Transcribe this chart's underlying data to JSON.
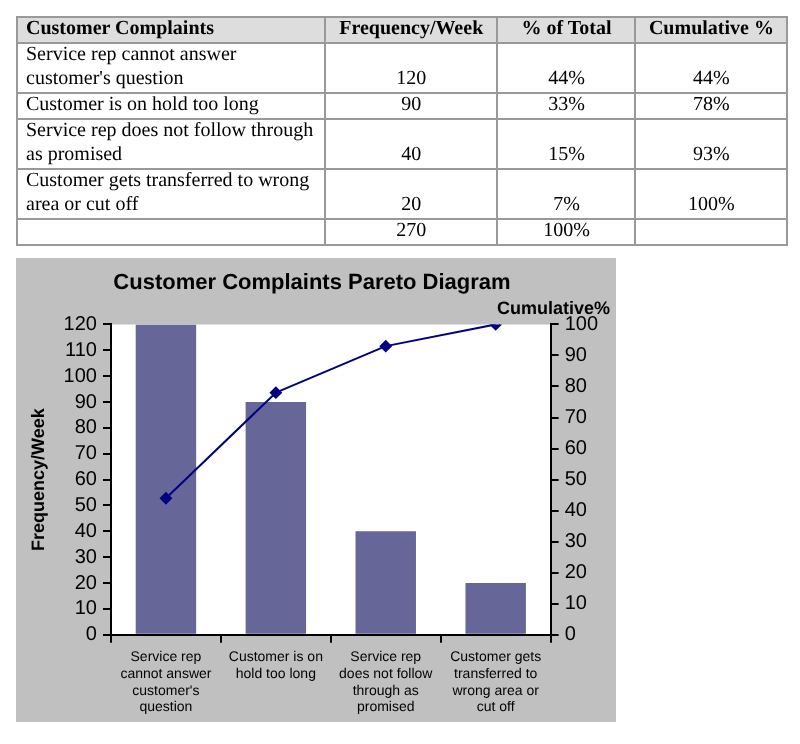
{
  "chart_data": {
    "type": "bar",
    "title": "Customer Complaints Pareto Diagram",
    "categories": [
      "Service rep cannot answer customer's question",
      "Customer is on hold too long",
      "Service rep does not follow through as promised",
      "Customer gets transferred to wrong area or cut off"
    ],
    "series": [
      {
        "type": "bar",
        "color": "#666699",
        "values": [
          120,
          90,
          40,
          20
        ]
      },
      {
        "type": "line",
        "axis": "y2",
        "color": "#000080",
        "marker": "diamond",
        "values": [
          44,
          78,
          93,
          100
        ]
      }
    ],
    "ylabel": "Frequency/Week",
    "y2label": "Cumulative%",
    "ylim": [
      0,
      120
    ],
    "yticks": [
      0,
      10,
      20,
      30,
      40,
      50,
      60,
      70,
      80,
      90,
      100,
      110,
      120
    ],
    "y2lim": [
      0,
      100
    ],
    "y2ticks": [
      0,
      10,
      20,
      30,
      40,
      50,
      60,
      70,
      80,
      90,
      100
    ],
    "grid": false,
    "legend": false,
    "annotations": [
      "Customer Complaints",
      "Frequency/Week",
      "% of Total",
      "Cumulative %",
      "Service rep cannot answer customer's question",
      "120",
      "44%",
      "44%",
      "Customer is on hold too long",
      "90",
      "33%",
      "78%",
      "Service rep does not follow through as promised",
      "40",
      "15%",
      "93%",
      "Customer gets transferred to wrong area or cut off",
      "20",
      "7%",
      "100%",
      "270",
      "100%"
    ]
  }
}
